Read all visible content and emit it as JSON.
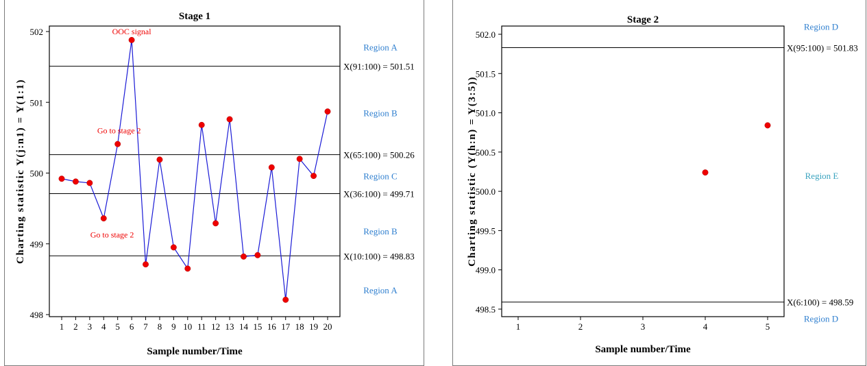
{
  "chart_data": [
    {
      "type": "line",
      "title": "Stage 1",
      "xlabel": "Sample number/Time",
      "ylabel": "Charting statistic Y(j:n1) = Y(1:1)",
      "xlim": [
        1,
        20
      ],
      "ylim": [
        497.95,
        502.15
      ],
      "x_ticks": [
        1,
        2,
        3,
        4,
        5,
        6,
        7,
        8,
        9,
        10,
        11,
        12,
        13,
        14,
        15,
        16,
        17,
        18,
        19,
        20
      ],
      "y_ticks": [
        498,
        499,
        500,
        501,
        502
      ],
      "grid": false,
      "series": [
        {
          "x": [
            1,
            2,
            3,
            4,
            5,
            6,
            7,
            8,
            9,
            10,
            11,
            12,
            13,
            14,
            15,
            16,
            17,
            18,
            19,
            20
          ],
          "values": [
            499.92,
            499.88,
            499.86,
            499.36,
            500.41,
            501.88,
            498.71,
            500.19,
            498.95,
            498.65,
            500.68,
            499.29,
            500.76,
            498.82,
            498.84,
            500.08,
            498.21,
            500.2,
            499.96,
            500.87
          ],
          "color": "#1a1ad6",
          "marker_color": "#ee0000"
        }
      ],
      "control_lines": [
        {
          "value": 501.51,
          "label": "X(91:100) = 501.51"
        },
        {
          "value": 500.26,
          "label": "X(65:100) = 500.26"
        },
        {
          "value": 499.71,
          "label": "X(36:100) = 499.71"
        },
        {
          "value": 498.83,
          "label": "X(10:100) = 498.83"
        }
      ],
      "regions": [
        {
          "label": "Region A",
          "y": 501.78
        },
        {
          "label": "Region B",
          "y": 500.85
        },
        {
          "label": "Region C",
          "y": 499.96
        },
        {
          "label": "Region B",
          "y": 499.18
        },
        {
          "label": "Region A",
          "y": 498.35
        }
      ],
      "annotations": [
        {
          "text": "OOC signal",
          "x": 6,
          "y": 502.0
        },
        {
          "text": "Go to stage 2",
          "x": 5.1,
          "y": 500.6
        },
        {
          "text": "Go to stage 2",
          "x": 4.6,
          "y": 499.13
        }
      ],
      "colors": {
        "line": "#1a1ad6",
        "marker": "#ee0000",
        "region": "#2f7fcf",
        "annotation": "#ee0000"
      }
    },
    {
      "type": "scatter",
      "title": "Stage 2",
      "xlabel": "Sample number/Time",
      "ylabel": "Charting statistic (Y(h:n) = Y(3:5))",
      "xlim": [
        1,
        5
      ],
      "ylim": [
        498.4,
        502.1
      ],
      "x_ticks": [
        1,
        2,
        3,
        4,
        5
      ],
      "y_ticks": [
        "498.5",
        "499.0",
        "499.5",
        "500.0",
        "500.5",
        "501.0",
        "501.5",
        "502.0"
      ],
      "grid": false,
      "series": [
        {
          "x": [
            4,
            5
          ],
          "values": [
            500.24,
            500.84
          ],
          "marker_color": "#ee0000"
        }
      ],
      "control_lines": [
        {
          "value": 501.83,
          "label": "X(95:100) = 501.83"
        },
        {
          "value": 498.59,
          "label": "X(6:100) = 498.59"
        }
      ],
      "regions": [
        {
          "label": "Region D",
          "y": 502.1
        },
        {
          "label": "Region E",
          "y": 500.2
        },
        {
          "label": "Region D",
          "y": 498.38
        }
      ],
      "colors": {
        "marker": "#ee0000",
        "region_d": "#2f7fcf",
        "region_e": "#3aa3bf"
      }
    }
  ]
}
